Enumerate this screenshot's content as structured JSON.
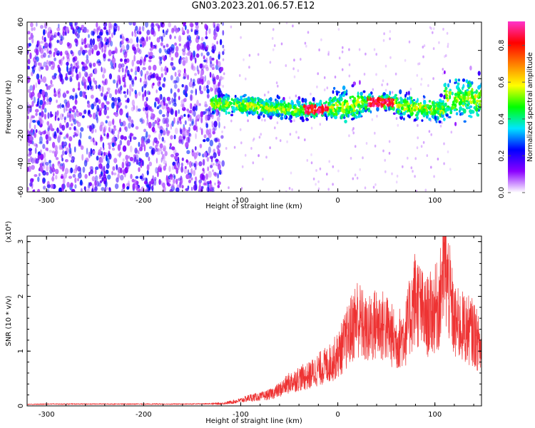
{
  "figure": {
    "title": "GN03.2023.201.06.57.E12"
  },
  "chart_data": [
    {
      "type": "heatmap",
      "title": "GN03.2023.201.06.57.E12",
      "xlabel": "Height of straight line (km)",
      "ylabel": "Frequency (Hz)",
      "xlim": [
        -320,
        148
      ],
      "ylim": [
        -60,
        60
      ],
      "x_ticks": [
        -300,
        -200,
        -100,
        0,
        100
      ],
      "y_ticks": [
        -60,
        -40,
        -20,
        0,
        20,
        40,
        60
      ],
      "colorbar": {
        "label": "Normalized spectral amplitude",
        "range": [
          0.0,
          0.93
        ],
        "ticks": [
          0.0,
          0.2,
          0.4,
          0.6,
          0.8
        ],
        "colors": [
          "#ffffff",
          "#8b00ff",
          "#0000ff",
          "#00e5ff",
          "#00ff00",
          "#ffff00",
          "#ff8000",
          "#ff0000",
          "#ff33cc"
        ]
      },
      "features": [
        {
          "x": [
            -320,
            -120
          ],
          "freq_band": [
            -60,
            60
          ],
          "amplitude": "scattered low (0.1-0.3)"
        },
        {
          "x": [
            -130,
            148
          ],
          "freq_band": [
            -10,
            10
          ],
          "amplitude": "band 0.3-0.6, peaks ~0.9 near x=-20 and x=45"
        },
        {
          "x": [
            110,
            148
          ],
          "freq_band": [
            -15,
            40
          ],
          "amplitude": "widened 0.2-0.5"
        }
      ]
    },
    {
      "type": "line",
      "xlabel": "Height of straight line (km)",
      "ylabel": "SNR (10 * v/v)",
      "y_multiplier": "(x10⁴)",
      "xlim": [
        -320,
        148
      ],
      "ylim": [
        0,
        3.1
      ],
      "x_ticks": [
        -300,
        -200,
        -100,
        0,
        100
      ],
      "y_ticks": [
        0,
        1,
        2,
        3
      ],
      "color": "#ee3333",
      "series": [
        {
          "x": [
            -320,
            -300,
            -250,
            -200,
            -150,
            -120,
            -110,
            -100,
            -90,
            -80,
            -70,
            -60,
            -50,
            -40,
            -30,
            -20,
            -10,
            0,
            10,
            20,
            30,
            40,
            50,
            60,
            70,
            80,
            90,
            100,
            105,
            110,
            120,
            130,
            140,
            148
          ],
          "values": [
            0.03,
            0.04,
            0.04,
            0.04,
            0.04,
            0.05,
            0.08,
            0.12,
            0.18,
            0.2,
            0.25,
            0.35,
            0.5,
            0.6,
            0.65,
            0.8,
            0.9,
            1.1,
            1.5,
            1.95,
            1.6,
            1.8,
            1.7,
            1.4,
            1.6,
            2.4,
            1.9,
            2.1,
            2.25,
            3.1,
            1.8,
            1.7,
            1.6,
            1.2
          ]
        }
      ]
    }
  ]
}
